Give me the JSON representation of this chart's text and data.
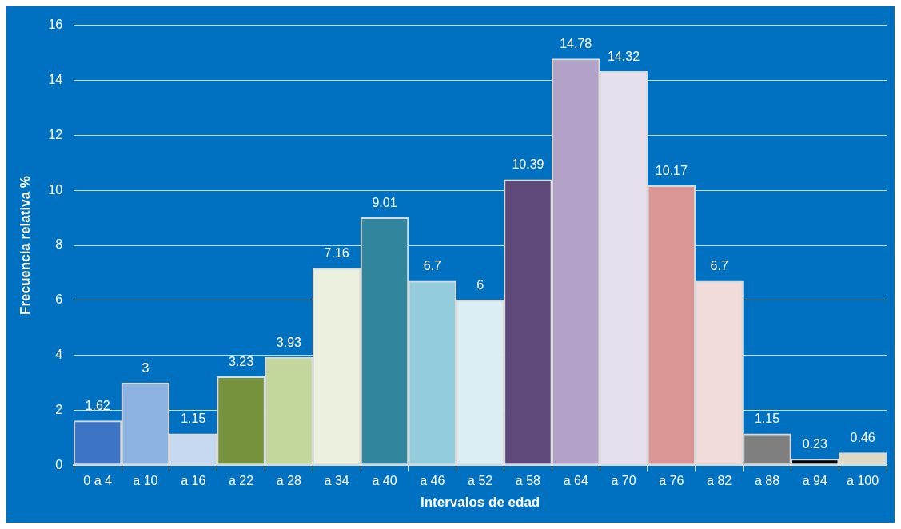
{
  "chart_data": {
    "type": "bar",
    "xlabel": "Intervalos de edad",
    "ylabel": "Frecuencia relativa %",
    "categories": [
      "0 a 4",
      "a 10",
      "a 16",
      "a 22",
      "a 28",
      "a 34",
      "a 40",
      "a 46",
      "a 52",
      "a 58",
      "a 64",
      "a 70",
      "a 76",
      "a 82",
      "a 88",
      "a 94",
      "a 100"
    ],
    "values": [
      1.62,
      3,
      1.15,
      3.23,
      3.93,
      7.16,
      9.01,
      6.7,
      6,
      10.39,
      14.78,
      14.32,
      10.17,
      6.7,
      1.15,
      0.23,
      0.46
    ],
    "colors": [
      "#3d74c4",
      "#8db3e2",
      "#c6d9f0",
      "#76923c",
      "#c3d69b",
      "#ebf1de",
      "#31859c",
      "#93cddd",
      "#dbeef3",
      "#5f497a",
      "#b2a2c7",
      "#e5e0ec",
      "#d99694",
      "#f2dcdb",
      "#7f7f7f",
      "#000000",
      "#ddd9c3"
    ],
    "ylim": [
      0,
      16
    ],
    "yticks": [
      0,
      2,
      4,
      6,
      8,
      10,
      12,
      14,
      16
    ],
    "grid": "y",
    "data_labels": true,
    "legend": false
  }
}
